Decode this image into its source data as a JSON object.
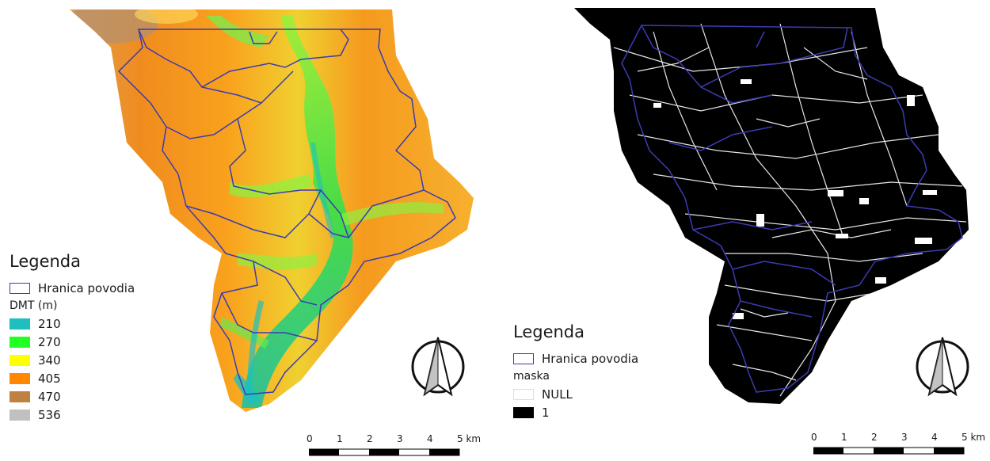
{
  "left_panel": {
    "legend": {
      "title": "Legenda",
      "boundary_label": "Hranica povodia",
      "raster_title": "DMT (m)",
      "classes": [
        {
          "label": "210",
          "color": "#1fbfbf"
        },
        {
          "label": "270",
          "color": "#22ff22"
        },
        {
          "label": "340",
          "color": "#ffff00"
        },
        {
          "label": "405",
          "color": "#ff8800"
        },
        {
          "label": "470",
          "color": "#c08040"
        },
        {
          "label": "536",
          "color": "#c0c0c0"
        }
      ]
    },
    "scalebar": {
      "ticks": [
        "0",
        "1",
        "2",
        "3",
        "4",
        "5 km"
      ]
    }
  },
  "right_panel": {
    "legend": {
      "title": "Legenda",
      "boundary_label": "Hranica povodia",
      "raster_title": "maska",
      "classes": [
        {
          "label": "NULL",
          "color": "#ffffff"
        },
        {
          "label": "1",
          "color": "#000000"
        }
      ]
    },
    "scalebar": {
      "ticks": [
        "0",
        "1",
        "2",
        "3",
        "4",
        "5 km"
      ]
    }
  },
  "colors": {
    "boundary": "#3b3bb3"
  },
  "icons": {
    "north_arrow": "north-arrow-icon"
  }
}
